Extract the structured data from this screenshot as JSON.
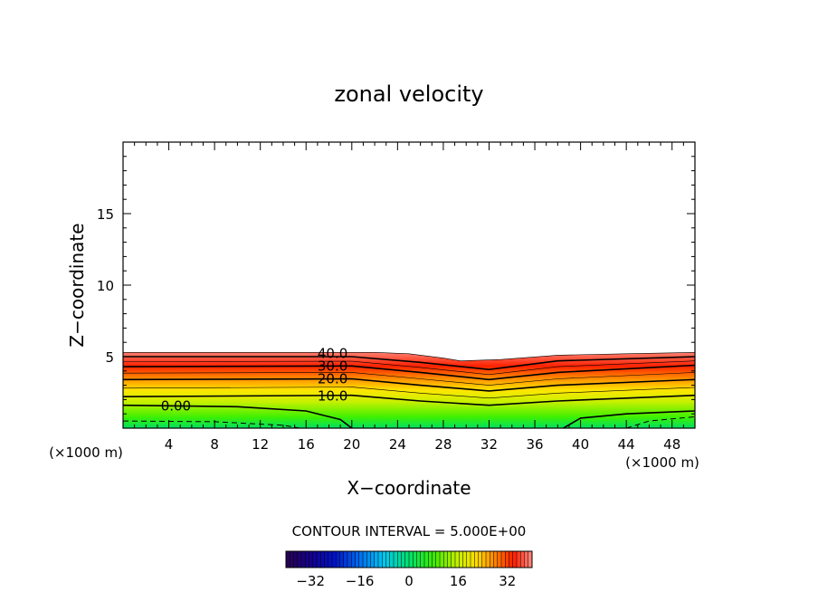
{
  "chart_data": {
    "type": "contour",
    "title": "zonal velocity",
    "xlabel": "X−coordinate",
    "ylabel": "Z−coordinate",
    "x_unit_label": "(×1000 m)",
    "xlim": [
      0,
      50
    ],
    "ylim": [
      0,
      20
    ],
    "x_ticks": [
      4,
      8,
      12,
      16,
      20,
      24,
      28,
      32,
      36,
      40,
      44,
      48
    ],
    "y_ticks": [
      5,
      10,
      15
    ],
    "contour_interval_text": "CONTOUR INTERVAL = 5.000E+00",
    "contour_labels": [
      {
        "text": "40.0",
        "x": 17.0,
        "z": 5.3
      },
      {
        "text": "30.0",
        "x": 17.0,
        "z": 4.4
      },
      {
        "text": "20.0",
        "x": 17.0,
        "z": 3.5
      },
      {
        "text": "10.0",
        "x": 17.0,
        "z": 2.3
      },
      {
        "text": "0.00",
        "x": 3.3,
        "z": 1.6
      }
    ],
    "top_boundary": [
      [
        0,
        5.3
      ],
      [
        22,
        5.3
      ],
      [
        25,
        5.2
      ],
      [
        28,
        4.9
      ],
      [
        29.5,
        4.7
      ],
      [
        33,
        4.8
      ],
      [
        38,
        5.1
      ],
      [
        44,
        5.2
      ],
      [
        50,
        5.3
      ]
    ],
    "contour_lines": [
      {
        "value": 40,
        "points": [
          [
            0,
            5.0
          ],
          [
            20,
            5.0
          ],
          [
            26,
            4.6
          ],
          [
            32,
            4.1
          ],
          [
            38,
            4.7
          ],
          [
            50,
            5.0
          ]
        ]
      },
      {
        "value": 30,
        "points": [
          [
            0,
            4.3
          ],
          [
            20,
            4.35
          ],
          [
            26,
            3.9
          ],
          [
            32,
            3.4
          ],
          [
            38,
            3.9
          ],
          [
            50,
            4.4
          ]
        ]
      },
      {
        "value": 20,
        "points": [
          [
            0,
            3.4
          ],
          [
            20,
            3.45
          ],
          [
            26,
            3.0
          ],
          [
            32,
            2.6
          ],
          [
            38,
            3.0
          ],
          [
            50,
            3.4
          ]
        ]
      },
      {
        "value": 10,
        "points": [
          [
            0,
            2.2
          ],
          [
            20,
            2.3
          ],
          [
            26,
            1.9
          ],
          [
            32,
            1.6
          ],
          [
            38,
            1.9
          ],
          [
            50,
            2.3
          ]
        ]
      },
      {
        "value": 0,
        "points": [
          [
            0,
            1.6
          ],
          [
            10,
            1.5
          ],
          [
            16,
            1.2
          ],
          [
            19,
            0.6
          ],
          [
            20,
            0.0
          ]
        ]
      },
      {
        "value": 0,
        "points": [
          [
            38.5,
            0.0
          ],
          [
            40,
            0.7
          ],
          [
            44,
            1.0
          ],
          [
            50,
            1.2
          ]
        ]
      }
    ],
    "negative_contours": [
      {
        "value": -5,
        "points": [
          [
            0,
            0.5
          ],
          [
            8,
            0.45
          ],
          [
            14,
            0.2
          ],
          [
            15.5,
            0.0
          ]
        ]
      },
      {
        "value": -5,
        "points": [
          [
            44,
            0.0
          ],
          [
            46,
            0.5
          ],
          [
            50,
            0.8
          ]
        ]
      }
    ],
    "colorbar": {
      "range": [
        -40,
        40
      ],
      "ticks": [
        -32,
        -16,
        0,
        16,
        32
      ],
      "tick_labels": [
        "−32",
        "−16",
        "0",
        "16",
        "32"
      ]
    }
  }
}
